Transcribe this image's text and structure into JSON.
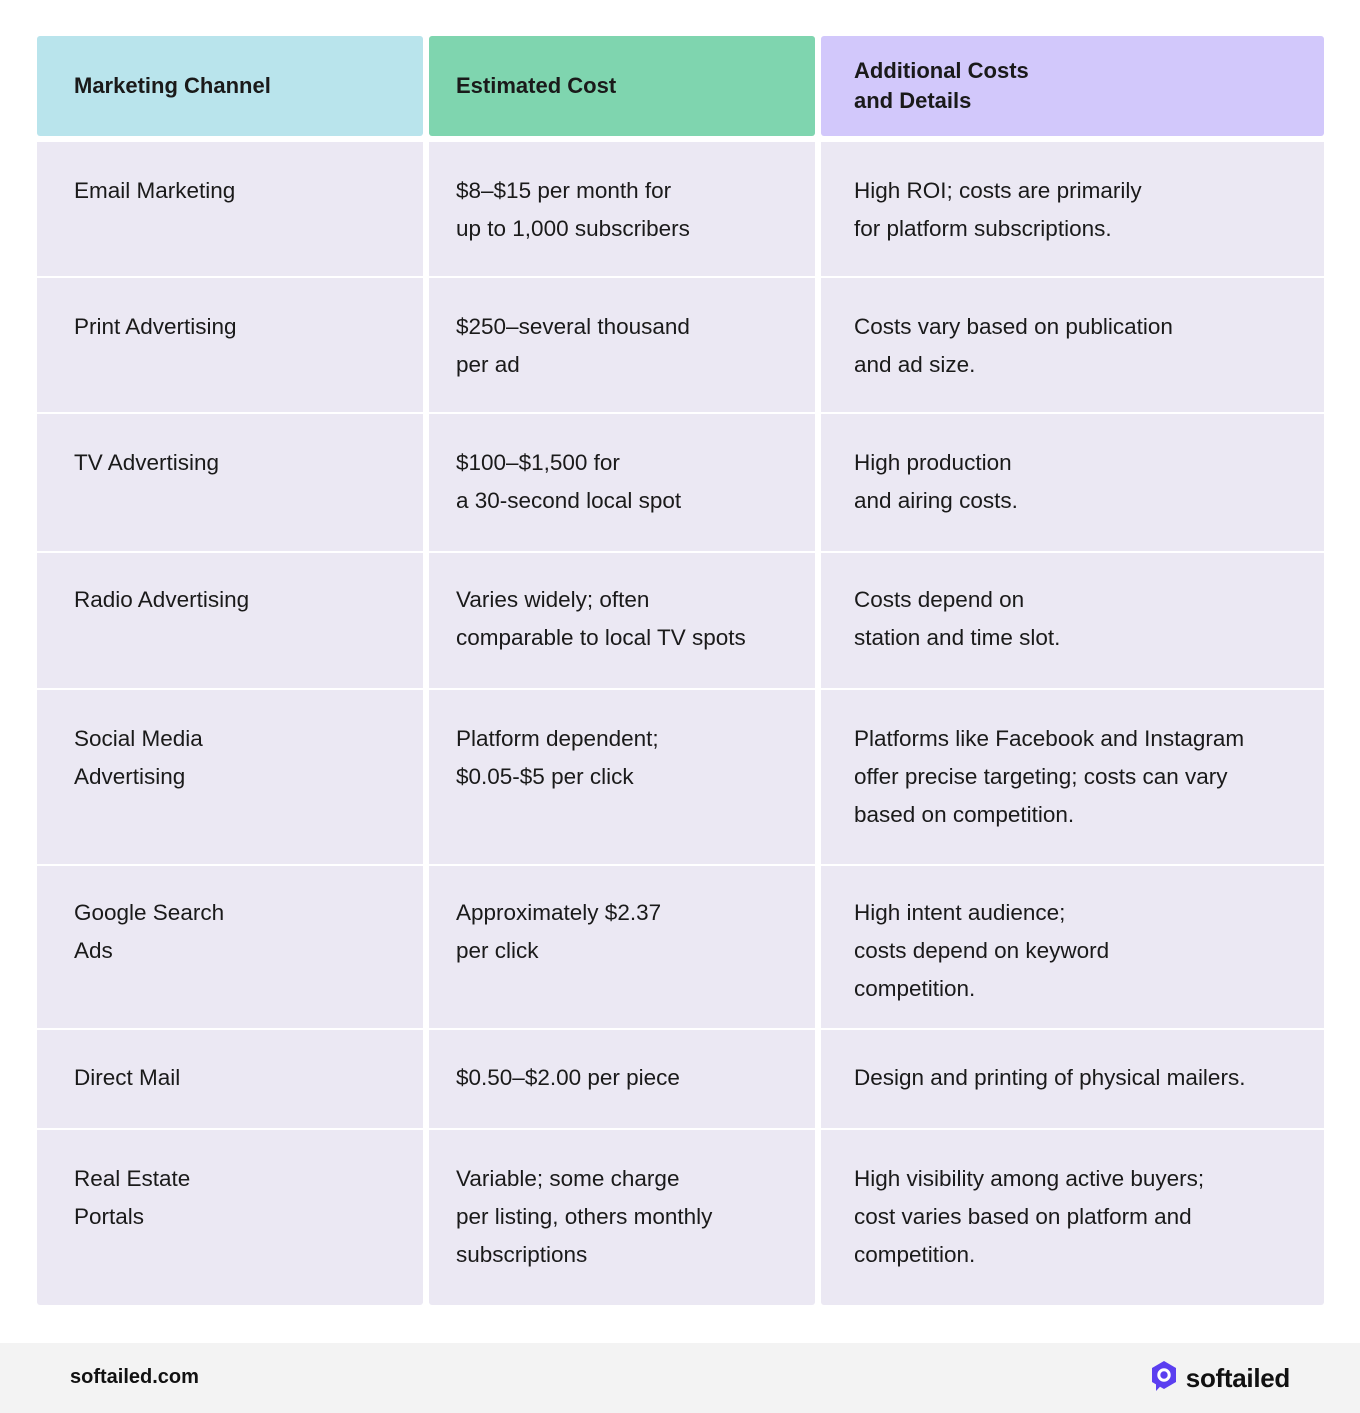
{
  "table": {
    "headers": [
      "Marketing Channel",
      "Estimated Cost",
      "Additional Costs\nand Details"
    ],
    "rows": [
      [
        "Email Marketing",
        "$8–$15 per month for\nup to 1,000 subscribers",
        "High ROI; costs are primarily\nfor platform subscriptions."
      ],
      [
        "Print Advertising",
        "$250–several thousand\nper ad",
        "Costs vary based on publication\nand ad size."
      ],
      [
        "TV Advertising",
        "$100–$1,500 for\na 30-second local spot",
        "High production\nand airing costs."
      ],
      [
        "Radio Advertising",
        "Varies widely; often\ncomparable to local TV spots",
        "Costs depend on\nstation and time slot."
      ],
      [
        "Social Media\nAdvertising",
        "Platform dependent;\n$0.05-$5 per click",
        "Platforms like Facebook and Instagram\noffer precise targeting; costs can vary\nbased on competition."
      ],
      [
        "Google Search\nAds",
        "Approximately $2.37\nper click",
        "High intent audience;\ncosts depend on keyword\ncompetition."
      ],
      [
        "Direct Mail",
        "$0.50–$2.00 per piece",
        "Design and printing of physical mailers."
      ],
      [
        "Real Estate\nPortals",
        "Variable; some charge\nper listing, others monthly\nsubscriptions",
        "High visibility among active buyers;\ncost varies based on platform and\ncompetition."
      ]
    ]
  },
  "footer": {
    "site": "softailed.com",
    "brand_name": "softailed",
    "brand_icon": "softailed-logo-icon",
    "brand_color": "#5b3ff0"
  },
  "colors": {
    "header_channel": "#b9e4ec",
    "header_cost": "#7fd5af",
    "header_details": "#d2c8fb",
    "cell_background": "#ebe8f3"
  }
}
